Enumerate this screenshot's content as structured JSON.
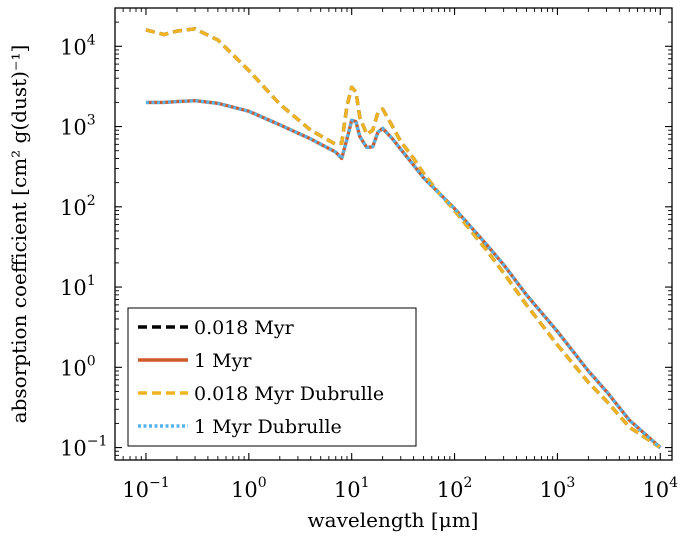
{
  "chart_data": {
    "type": "line",
    "title": "",
    "xlabel": "wavelength [μm]",
    "ylabel": "absorption coefficient [cm² g(dust)⁻¹]",
    "xscale": "log",
    "yscale": "log",
    "xlim": [
      0.05,
      13000
    ],
    "ylim": [
      0.07,
      30000
    ],
    "x_ticks": [
      {
        "value": 0.1,
        "base": "10",
        "exp": "−1"
      },
      {
        "value": 1,
        "base": "10",
        "exp": "0"
      },
      {
        "value": 10,
        "base": "10",
        "exp": "1"
      },
      {
        "value": 100,
        "base": "10",
        "exp": "2"
      },
      {
        "value": 1000,
        "base": "10",
        "exp": "3"
      },
      {
        "value": 10000,
        "base": "10",
        "exp": "4"
      }
    ],
    "y_ticks": [
      {
        "value": 0.1,
        "base": "10",
        "exp": "−1"
      },
      {
        "value": 1,
        "base": "10",
        "exp": "0"
      },
      {
        "value": 10,
        "base": "10",
        "exp": "1"
      },
      {
        "value": 100,
        "base": "10",
        "exp": "2"
      },
      {
        "value": 1000,
        "base": "10",
        "exp": "3"
      },
      {
        "value": 10000,
        "base": "10",
        "exp": "4"
      }
    ],
    "grid": false,
    "legend_position": "lower-left",
    "series": [
      {
        "name": "1 Myr",
        "color": "#d0592a",
        "style": "solid",
        "x": [
          0.1,
          0.15,
          0.2,
          0.3,
          0.5,
          1,
          2,
          4,
          7,
          8,
          9,
          10,
          11,
          12,
          14,
          16,
          18,
          20,
          25,
          30,
          40,
          50,
          70,
          100,
          200,
          300,
          500,
          1000,
          2000,
          3000,
          5000,
          10000
        ],
        "y": [
          2000,
          2000,
          2050,
          2100,
          1950,
          1550,
          1050,
          700,
          480,
          400,
          700,
          1200,
          1150,
          750,
          550,
          560,
          850,
          950,
          700,
          520,
          330,
          230,
          150,
          95,
          35,
          19,
          8,
          2.8,
          0.9,
          0.5,
          0.22,
          0.1
        ]
      },
      {
        "name": "0.018 Myr",
        "color": "#000000",
        "style": "dashed",
        "x": [
          0.1,
          0.15,
          0.2,
          0.3,
          0.5,
          1,
          2,
          4,
          7,
          8,
          9,
          10,
          11,
          12,
          14,
          16,
          18,
          20,
          25,
          30,
          40,
          50,
          70,
          100,
          200,
          300,
          500,
          1000,
          2000,
          3000,
          5000,
          10000
        ],
        "y": [
          16000,
          14000,
          15500,
          16500,
          12000,
          5000,
          1900,
          900,
          600,
          620,
          1800,
          3100,
          2700,
          1300,
          800,
          900,
          1500,
          1650,
          1000,
          650,
          400,
          260,
          150,
          90,
          30,
          15,
          6,
          1.9,
          0.65,
          0.38,
          0.18,
          0.1
        ]
      },
      {
        "name": "0.018 Myr Dubrulle",
        "color": "#f0b323",
        "style": "dashed",
        "x": [
          0.1,
          0.15,
          0.2,
          0.3,
          0.5,
          1,
          2,
          4,
          7,
          8,
          9,
          10,
          11,
          12,
          14,
          16,
          18,
          20,
          25,
          30,
          40,
          50,
          70,
          100,
          200,
          300,
          500,
          1000,
          2000,
          3000,
          5000,
          10000
        ],
        "y": [
          16000,
          14000,
          15500,
          16500,
          12000,
          5000,
          1900,
          900,
          600,
          620,
          1800,
          3100,
          2700,
          1300,
          800,
          900,
          1500,
          1650,
          1000,
          650,
          400,
          260,
          150,
          90,
          30,
          15,
          6,
          1.9,
          0.65,
          0.38,
          0.18,
          0.1
        ]
      },
      {
        "name": "1 Myr Dubrulle",
        "color": "#56b4e9",
        "style": "dotted",
        "x": [
          0.1,
          0.15,
          0.2,
          0.3,
          0.5,
          1,
          2,
          4,
          7,
          8,
          9,
          10,
          11,
          12,
          14,
          16,
          18,
          20,
          25,
          30,
          40,
          50,
          70,
          100,
          200,
          300,
          500,
          1000,
          2000,
          3000,
          5000,
          10000
        ],
        "y": [
          2000,
          2000,
          2050,
          2100,
          1950,
          1550,
          1050,
          700,
          480,
          400,
          700,
          1200,
          1150,
          750,
          550,
          560,
          850,
          950,
          700,
          520,
          330,
          230,
          150,
          95,
          35,
          19,
          8,
          2.8,
          0.9,
          0.5,
          0.22,
          0.1
        ]
      }
    ],
    "legend_order": [
      "0.018 Myr",
      "1 Myr",
      "0.018 Myr Dubrulle",
      "1 Myr Dubrulle"
    ]
  }
}
